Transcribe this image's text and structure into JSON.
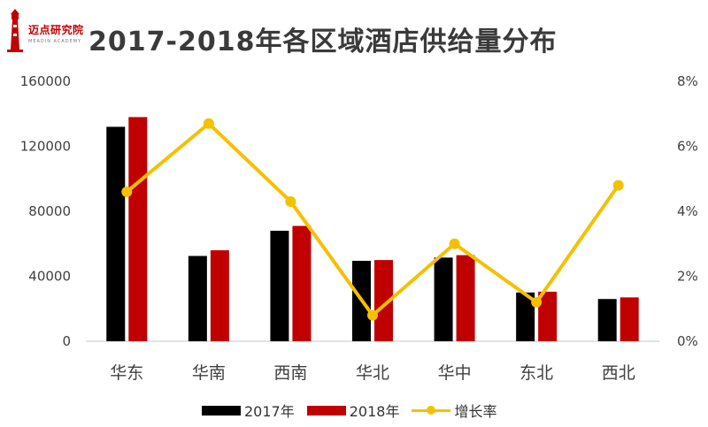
{
  "logo": {
    "text": "迈点研究院",
    "sub": "MEADIN ACADEMY"
  },
  "colors": {
    "series2017": "#000000",
    "series2018": "#c00000",
    "growth": "#f5c000",
    "axis": "#d9d9d9"
  },
  "chart_data": {
    "type": "bar",
    "title": "2017-2018年各区域酒店供给量分布",
    "categories": [
      "华东",
      "华南",
      "西南",
      "华北",
      "华中",
      "东北",
      "西北"
    ],
    "series": [
      {
        "name": "2017年",
        "type": "bar",
        "axis": "left",
        "values": [
          132000,
          52500,
          68000,
          49500,
          51500,
          30000,
          26000
        ]
      },
      {
        "name": "2018年",
        "type": "bar",
        "axis": "left",
        "values": [
          138000,
          56000,
          71000,
          50000,
          53000,
          30500,
          27000
        ]
      },
      {
        "name": "增长率",
        "type": "line",
        "axis": "right",
        "values": [
          4.6,
          6.7,
          4.3,
          0.8,
          3.0,
          1.2,
          4.8
        ]
      }
    ],
    "ylim": [
      0,
      160000
    ],
    "yticks": [
      "0",
      "40000",
      "80000",
      "120000",
      "160000"
    ],
    "y2lim": [
      0,
      8
    ],
    "y2ticks": [
      "0%",
      "2%",
      "4%",
      "6%",
      "8%"
    ],
    "legend": "bottom",
    "grid": false
  }
}
